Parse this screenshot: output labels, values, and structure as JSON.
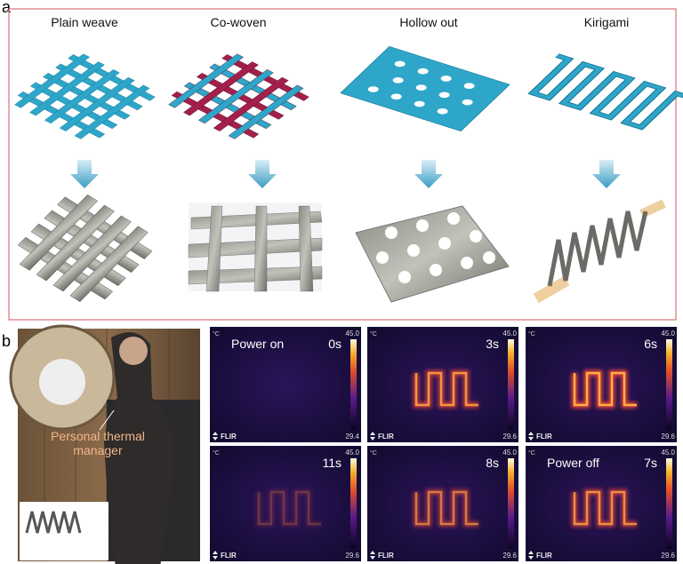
{
  "panel_a": {
    "label": "a",
    "columns": [
      {
        "title": "Plain weave"
      },
      {
        "title": "Co-woven"
      },
      {
        "title": "Hollow out"
      },
      {
        "title": "Kirigami"
      }
    ]
  },
  "panel_b": {
    "label": "b",
    "caption_lines": [
      "Personal thermal",
      "manager"
    ],
    "thermal_images": [
      {
        "annotation": "Power on",
        "time": "0s",
        "unit": "°C",
        "scale_max": "45.0",
        "scale_min": "29.4",
        "brand": "FLIR"
      },
      {
        "time": "3s",
        "unit": "°C",
        "scale_max": "45.0",
        "scale_min": "29.6",
        "brand": "FLIR"
      },
      {
        "time": "6s",
        "unit": "°C",
        "scale_max": "45.0",
        "scale_min": "29.6",
        "brand": "FLIR"
      },
      {
        "time": "11s",
        "unit": "°C",
        "scale_max": "45.0",
        "scale_min": "29.6",
        "brand": "FLIR"
      },
      {
        "time": "8s",
        "unit": "°C",
        "scale_max": "45.0",
        "scale_min": "29.6",
        "brand": "FLIR"
      },
      {
        "annotation": "Power off",
        "time": "7s",
        "unit": "°C",
        "scale_max": "45.0",
        "scale_min": "29.6",
        "brand": "FLIR"
      }
    ]
  }
}
